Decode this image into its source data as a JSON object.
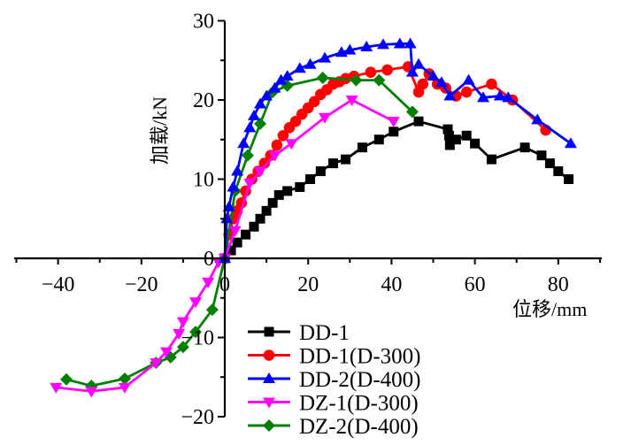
{
  "chart_data": {
    "type": "line",
    "title": "",
    "xlabel": "位移/mm",
    "ylabel": "加载/kN",
    "xlim": [
      -50,
      90
    ],
    "ylim": [
      -20,
      30
    ],
    "xticks": [
      -40,
      -20,
      0,
      20,
      40,
      60,
      80
    ],
    "xtick_labels": [
      "−40",
      "−20",
      "0",
      "20",
      "40",
      "60",
      "80"
    ],
    "yticks": [
      -20,
      -10,
      0,
      10,
      20,
      30
    ],
    "ytick_labels": [
      "−20",
      "−10",
      "0",
      "10",
      "20",
      "30"
    ],
    "grid": false,
    "legend_position": "bottom-center",
    "series": [
      {
        "name": "DD-1",
        "color": "#000000",
        "marker": "square",
        "x": [
          0,
          1.5,
          3,
          5,
          7,
          8.5,
          10,
          11.5,
          13,
          15,
          18,
          20.5,
          23,
          26,
          29,
          33,
          37,
          40.5,
          46.5,
          53.5,
          53.8,
          54,
          55.5,
          58,
          60,
          64,
          72,
          76,
          78,
          80,
          82.5
        ],
        "y": [
          0,
          1,
          2,
          3,
          4,
          5,
          6,
          7,
          8,
          8.5,
          9,
          10,
          11,
          12,
          12.5,
          14,
          15,
          16,
          17.3,
          16.3,
          15.5,
          14.3,
          15,
          15.5,
          14.5,
          12.5,
          14,
          13,
          12,
          11,
          10
        ]
      },
      {
        "name": "DD-1(D-300)",
        "color": "#ff0000",
        "marker": "circle",
        "x": [
          0,
          1,
          2,
          3,
          4,
          5,
          6.5,
          8,
          9.5,
          11,
          12.5,
          14,
          15.5,
          17,
          18.5,
          20,
          21.5,
          23,
          24.5,
          26,
          27.5,
          29,
          31,
          35,
          39,
          44,
          46.5,
          47.5,
          49,
          51,
          53,
          55.5,
          58,
          64,
          69,
          77
        ],
        "y": [
          0,
          3,
          5,
          6,
          7,
          8.5,
          10,
          11,
          12,
          13,
          14.3,
          15.5,
          16.5,
          17.3,
          18.2,
          19,
          19.8,
          20.7,
          21.3,
          22,
          22.3,
          22.7,
          23,
          23.5,
          23.8,
          24.2,
          21,
          22,
          23.3,
          22,
          21.5,
          20.5,
          21,
          22,
          20,
          16.2
        ]
      },
      {
        "name": "DD-2(D-400)",
        "color": "#0000ff",
        "marker": "triangle-up",
        "x": [
          0,
          0.5,
          1,
          2,
          3,
          4.5,
          6,
          7,
          8.5,
          10,
          12,
          13.5,
          15,
          18,
          20.5,
          24,
          28,
          30,
          34,
          38,
          42,
          44.5,
          45,
          46.5,
          50,
          52,
          54,
          58.5,
          62,
          66,
          68,
          75,
          83
        ],
        "y": [
          0,
          5,
          6.5,
          9,
          11,
          14.5,
          16.5,
          18,
          19.5,
          20.5,
          21.5,
          22.5,
          23,
          24,
          24.5,
          25.3,
          26,
          26.3,
          26.7,
          27,
          27.1,
          27.1,
          23.5,
          24.5,
          23,
          22.2,
          20.5,
          22.5,
          20.3,
          20.5,
          20.3,
          17.5,
          14.5
        ]
      },
      {
        "name": "DZ-1(D-300)",
        "color": "#ff00ff",
        "marker": "triangle-down",
        "x": [
          -40.5,
          -32,
          -24,
          -16.5,
          -14,
          -11,
          -10,
          -7,
          -4,
          -1.5,
          0,
          2.5,
          6,
          8.5,
          12,
          16,
          24,
          30.5,
          40.5,
          -1.5,
          -40.5
        ],
        "y": [
          -16.3,
          -16.8,
          -16.3,
          -13.2,
          -11.8,
          -9.5,
          -8,
          -5.5,
          -3,
          -0.5,
          0,
          3.5,
          9.5,
          11,
          13,
          14.5,
          17.8,
          20,
          17.3,
          -0.5,
          -16.3
        ]
      },
      {
        "name": "DZ-2(D-400)",
        "color": "#008000",
        "marker": "diamond",
        "x": [
          -38,
          -32,
          -24,
          -16.5,
          -13,
          -10,
          -7,
          -3,
          0,
          2.5,
          5.5,
          8.5,
          11.5,
          15,
          23.5,
          31.5,
          37,
          45
        ],
        "y": [
          -15.3,
          -16.1,
          -15.2,
          -13.2,
          -12.5,
          -11.2,
          -9.3,
          -6.5,
          0,
          8.5,
          13,
          17,
          21,
          21.8,
          22.8,
          22.5,
          22.5,
          18.5
        ]
      }
    ]
  }
}
